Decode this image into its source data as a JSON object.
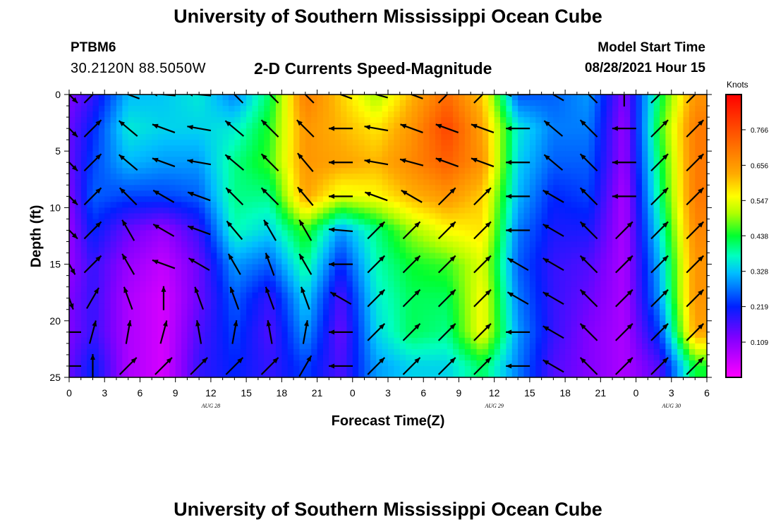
{
  "header": {
    "title": "University of Southern Mississippi Ocean Cube",
    "station": "PTBM6",
    "coordinates": "30.2120N  88.5050W",
    "subtitle": "2-D Currents Speed-Magnitude",
    "model_start_label": "Model Start Time",
    "model_start_time": "08/28/2021 Hour 15"
  },
  "footer": {
    "title": "University of Southern Mississippi Ocean Cube"
  },
  "chart_data": {
    "type": "heatmap",
    "xlabel": "Forecast Time(Z)",
    "ylabel": "Depth (ft)",
    "x_tick_labels": [
      "0",
      "3",
      "6",
      "9",
      "12",
      "15",
      "18",
      "21",
      "0",
      "3",
      "6",
      "9",
      "12",
      "15",
      "18",
      "21",
      "0",
      "3",
      "6"
    ],
    "x_range_hours": [
      0,
      54
    ],
    "day_labels": [
      {
        "text": "AUG 28",
        "hour": 12
      },
      {
        "text": "AUG 29",
        "hour": 36
      },
      {
        "text": "AUG 30",
        "hour": 51
      }
    ],
    "y_ticks": [
      0,
      5,
      10,
      15,
      20,
      25
    ],
    "ylim": [
      0,
      25
    ],
    "y_inverted": true,
    "colorbar": {
      "units": "Knots",
      "ticks": [
        0.766,
        0.656,
        0.547,
        0.438,
        0.328,
        0.219,
        0.109
      ],
      "range": [
        0.0,
        0.875
      ]
    },
    "arrow_x_hours": [
      0,
      2,
      5,
      8,
      11,
      14,
      17,
      20,
      23,
      26,
      29,
      32,
      35,
      38,
      41,
      44,
      47,
      50,
      53
    ],
    "arrow_depths_ft": [
      0,
      3,
      6,
      9,
      12,
      15,
      18,
      21,
      24
    ],
    "speed_grid_knots": [
      [
        0.12,
        0.18,
        0.32,
        0.33,
        0.36,
        0.28,
        0.42,
        0.7,
        0.6,
        0.5,
        0.62,
        0.72,
        0.6,
        0.25,
        0.26,
        0.3,
        0.12,
        0.42,
        0.66
      ],
      [
        0.14,
        0.22,
        0.36,
        0.34,
        0.34,
        0.36,
        0.45,
        0.66,
        0.62,
        0.58,
        0.66,
        0.78,
        0.64,
        0.36,
        0.28,
        0.28,
        0.1,
        0.45,
        0.7
      ],
      [
        0.14,
        0.24,
        0.32,
        0.3,
        0.3,
        0.4,
        0.46,
        0.66,
        0.64,
        0.62,
        0.68,
        0.74,
        0.66,
        0.34,
        0.26,
        0.26,
        0.1,
        0.42,
        0.7
      ],
      [
        0.12,
        0.26,
        0.24,
        0.24,
        0.26,
        0.4,
        0.4,
        0.64,
        0.54,
        0.56,
        0.62,
        0.66,
        0.6,
        0.32,
        0.22,
        0.24,
        0.08,
        0.4,
        0.7
      ],
      [
        0.1,
        0.22,
        0.14,
        0.1,
        0.18,
        0.38,
        0.34,
        0.46,
        0.3,
        0.4,
        0.5,
        0.56,
        0.58,
        0.28,
        0.2,
        0.2,
        0.08,
        0.36,
        0.68
      ],
      [
        0.1,
        0.18,
        0.1,
        0.06,
        0.14,
        0.3,
        0.26,
        0.4,
        0.22,
        0.38,
        0.44,
        0.46,
        0.54,
        0.26,
        0.18,
        0.16,
        0.08,
        0.32,
        0.66
      ],
      [
        0.12,
        0.18,
        0.08,
        0.04,
        0.14,
        0.26,
        0.18,
        0.34,
        0.16,
        0.36,
        0.42,
        0.42,
        0.56,
        0.28,
        0.18,
        0.14,
        0.08,
        0.3,
        0.66
      ],
      [
        0.12,
        0.18,
        0.08,
        0.04,
        0.16,
        0.24,
        0.16,
        0.3,
        0.14,
        0.34,
        0.42,
        0.4,
        0.56,
        0.3,
        0.18,
        0.12,
        0.08,
        0.24,
        0.64
      ],
      [
        0.14,
        0.22,
        0.08,
        0.04,
        0.18,
        0.22,
        0.18,
        0.24,
        0.16,
        0.3,
        0.34,
        0.34,
        0.42,
        0.28,
        0.16,
        0.12,
        0.08,
        0.16,
        0.44
      ]
    ],
    "direction_grid_deg": [
      [
        135,
        45,
        290,
        275,
        275,
        315,
        315,
        315,
        290,
        285,
        290,
        45,
        45,
        270,
        300,
        315,
        0,
        45,
        45
      ],
      [
        135,
        45,
        310,
        290,
        280,
        310,
        315,
        315,
        270,
        280,
        290,
        290,
        290,
        270,
        310,
        315,
        270,
        45,
        45
      ],
      [
        135,
        45,
        310,
        290,
        280,
        310,
        315,
        320,
        270,
        280,
        285,
        290,
        290,
        270,
        310,
        315,
        270,
        45,
        45
      ],
      [
        135,
        45,
        315,
        300,
        290,
        315,
        315,
        320,
        270,
        290,
        300,
        45,
        45,
        270,
        300,
        315,
        270,
        45,
        45
      ],
      [
        135,
        45,
        330,
        300,
        290,
        320,
        330,
        330,
        275,
        45,
        45,
        45,
        45,
        270,
        300,
        315,
        45,
        45,
        45
      ],
      [
        150,
        45,
        330,
        290,
        300,
        330,
        340,
        330,
        270,
        45,
        45,
        45,
        45,
        300,
        300,
        315,
        45,
        45,
        45
      ],
      [
        160,
        30,
        340,
        0,
        340,
        340,
        340,
        340,
        300,
        45,
        45,
        45,
        45,
        300,
        300,
        315,
        45,
        45,
        45
      ],
      [
        270,
        15,
        10,
        15,
        350,
        10,
        350,
        10,
        270,
        45,
        45,
        45,
        45,
        270,
        300,
        315,
        45,
        45,
        45
      ],
      [
        270,
        0,
        45,
        45,
        45,
        45,
        45,
        30,
        270,
        45,
        45,
        45,
        45,
        270,
        300,
        315,
        45,
        45,
        45
      ]
    ]
  }
}
